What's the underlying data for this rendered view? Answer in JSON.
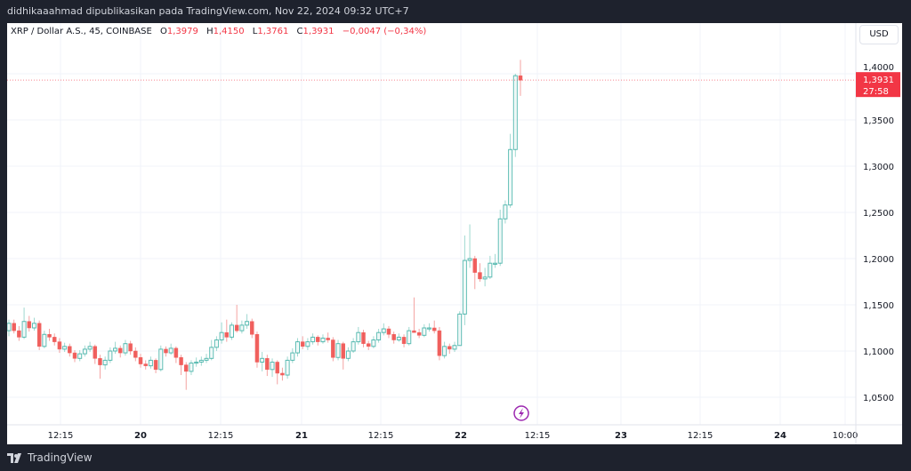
{
  "header": {
    "publish_text": "didhikaaahmad dipublikasikan pada TradingView.com, Nov 22, 2024 09:32 UTC+7"
  },
  "legend": {
    "symbol": "XRP / Dollar A.S., 45, COINBASE",
    "o_label": "O",
    "o": "1,3979",
    "h_label": "H",
    "h": "1,4150",
    "l_label": "L",
    "l": "1,3761",
    "c_label": "C",
    "c": "1,3931",
    "change": "−0,0047 (−0,34%)"
  },
  "currency_button": "USD",
  "last_price": {
    "price": "1,3931",
    "countdown": "27:58",
    "value": 1.3931
  },
  "footer": {
    "brand": "TradingView"
  },
  "colors": {
    "up": "#26a69a",
    "down": "#ef5350",
    "price_label": "#f23645",
    "lightning": "#9c27b0"
  },
  "icons": {
    "lightning": "lightning-icon",
    "logo": "tradingview-logo-icon"
  },
  "chart_data": {
    "type": "candlestick",
    "ylim": [
      1.03,
      1.43
    ],
    "y_ticks": [
      1.05,
      1.1,
      1.15,
      1.2,
      1.25,
      1.3,
      1.35,
      1.4
    ],
    "y_tick_labels": [
      "1,0500",
      "1,1000",
      "1,1500",
      "1,2000",
      "1,2500",
      "1,3000",
      "1,3500",
      "1,4000"
    ],
    "x_tick_labels": [
      "12:15",
      "20",
      "12:15",
      "21",
      "12:15",
      "22",
      "12:15",
      "23",
      "12:15",
      "24",
      "10:00"
    ],
    "grid": true,
    "candles": [
      [
        1.122,
        1.134,
        1.116,
        1.13
      ],
      [
        1.13,
        1.134,
        1.119,
        1.122
      ],
      [
        1.122,
        1.127,
        1.111,
        1.115
      ],
      [
        1.115,
        1.147,
        1.113,
        1.132
      ],
      [
        1.132,
        1.138,
        1.121,
        1.125
      ],
      [
        1.125,
        1.136,
        1.122,
        1.13
      ],
      [
        1.13,
        1.133,
        1.101,
        1.105
      ],
      [
        1.105,
        1.122,
        1.103,
        1.118
      ],
      [
        1.118,
        1.124,
        1.111,
        1.115
      ],
      [
        1.115,
        1.119,
        1.106,
        1.11
      ],
      [
        1.11,
        1.114,
        1.098,
        1.102
      ],
      [
        1.102,
        1.109,
        1.099,
        1.105
      ],
      [
        1.105,
        1.108,
        1.094,
        1.098
      ],
      [
        1.098,
        1.101,
        1.088,
        1.092
      ],
      [
        1.092,
        1.101,
        1.089,
        1.097
      ],
      [
        1.097,
        1.106,
        1.094,
        1.102
      ],
      [
        1.102,
        1.11,
        1.099,
        1.105
      ],
      [
        1.105,
        1.107,
        1.086,
        1.092
      ],
      [
        1.092,
        1.096,
        1.07,
        1.085
      ],
      [
        1.085,
        1.094,
        1.08,
        1.09
      ],
      [
        1.09,
        1.104,
        1.087,
        1.1
      ],
      [
        1.1,
        1.11,
        1.097,
        1.103
      ],
      [
        1.103,
        1.106,
        1.093,
        1.098
      ],
      [
        1.098,
        1.112,
        1.095,
        1.108
      ],
      [
        1.108,
        1.111,
        1.096,
        1.1
      ],
      [
        1.1,
        1.104,
        1.089,
        1.093
      ],
      [
        1.093,
        1.097,
        1.082,
        1.086
      ],
      [
        1.086,
        1.09,
        1.08,
        1.084
      ],
      [
        1.084,
        1.094,
        1.081,
        1.09
      ],
      [
        1.09,
        1.092,
        1.076,
        1.08
      ],
      [
        1.08,
        1.106,
        1.078,
        1.102
      ],
      [
        1.102,
        1.105,
        1.094,
        1.098
      ],
      [
        1.098,
        1.108,
        1.096,
        1.103
      ],
      [
        1.103,
        1.105,
        1.087,
        1.093
      ],
      [
        1.093,
        1.096,
        1.074,
        1.085
      ],
      [
        1.085,
        1.088,
        1.058,
        1.078
      ],
      [
        1.078,
        1.09,
        1.074,
        1.087
      ],
      [
        1.087,
        1.093,
        1.083,
        1.088
      ],
      [
        1.088,
        1.094,
        1.084,
        1.09
      ],
      [
        1.09,
        1.097,
        1.087,
        1.092
      ],
      [
        1.092,
        1.112,
        1.09,
        1.104
      ],
      [
        1.104,
        1.116,
        1.1,
        1.112
      ],
      [
        1.112,
        1.131,
        1.108,
        1.12
      ],
      [
        1.12,
        1.134,
        1.11,
        1.115
      ],
      [
        1.115,
        1.131,
        1.112,
        1.128
      ],
      [
        1.128,
        1.15,
        1.12,
        1.122
      ],
      [
        1.122,
        1.133,
        1.119,
        1.128
      ],
      [
        1.128,
        1.14,
        1.124,
        1.132
      ],
      [
        1.132,
        1.135,
        1.114,
        1.118
      ],
      [
        1.118,
        1.121,
        1.082,
        1.088
      ],
      [
        1.088,
        1.099,
        1.078,
        1.092
      ],
      [
        1.092,
        1.096,
        1.073,
        1.08
      ],
      [
        1.08,
        1.092,
        1.072,
        1.088
      ],
      [
        1.088,
        1.09,
        1.064,
        1.076
      ],
      [
        1.076,
        1.082,
        1.068,
        1.074
      ],
      [
        1.074,
        1.094,
        1.07,
        1.09
      ],
      [
        1.09,
        1.103,
        1.087,
        1.098
      ],
      [
        1.098,
        1.114,
        1.094,
        1.11
      ],
      [
        1.11,
        1.116,
        1.102,
        1.105
      ],
      [
        1.105,
        1.114,
        1.101,
        1.11
      ],
      [
        1.11,
        1.119,
        1.107,
        1.115
      ],
      [
        1.115,
        1.117,
        1.106,
        1.11
      ],
      [
        1.11,
        1.118,
        1.108,
        1.114
      ],
      [
        1.114,
        1.12,
        1.109,
        1.112
      ],
      [
        1.112,
        1.115,
        1.089,
        1.093
      ],
      [
        1.093,
        1.112,
        1.09,
        1.108
      ],
      [
        1.108,
        1.11,
        1.08,
        1.092
      ],
      [
        1.092,
        1.104,
        1.089,
        1.1
      ],
      [
        1.1,
        1.114,
        1.098,
        1.11
      ],
      [
        1.11,
        1.126,
        1.107,
        1.12
      ],
      [
        1.12,
        1.123,
        1.104,
        1.108
      ],
      [
        1.108,
        1.111,
        1.101,
        1.105
      ],
      [
        1.105,
        1.116,
        1.103,
        1.112
      ],
      [
        1.112,
        1.124,
        1.109,
        1.12
      ],
      [
        1.12,
        1.13,
        1.117,
        1.124
      ],
      [
        1.124,
        1.127,
        1.114,
        1.118
      ],
      [
        1.118,
        1.121,
        1.108,
        1.112
      ],
      [
        1.112,
        1.119,
        1.11,
        1.115
      ],
      [
        1.115,
        1.118,
        1.104,
        1.108
      ],
      [
        1.108,
        1.126,
        1.106,
        1.122
      ],
      [
        1.122,
        1.158,
        1.12,
        1.12
      ],
      [
        1.12,
        1.124,
        1.114,
        1.117
      ],
      [
        1.117,
        1.129,
        1.115,
        1.125
      ],
      [
        1.125,
        1.13,
        1.121,
        1.125
      ],
      [
        1.125,
        1.133,
        1.119,
        1.122
      ],
      [
        1.122,
        1.126,
        1.09,
        1.095
      ],
      [
        1.095,
        1.11,
        1.092,
        1.105
      ],
      [
        1.105,
        1.108,
        1.097,
        1.102
      ],
      [
        1.102,
        1.11,
        1.099,
        1.106
      ],
      [
        1.106,
        1.143,
        1.106,
        1.14
      ],
      [
        1.14,
        1.225,
        1.128,
        1.198
      ],
      [
        1.198,
        1.237,
        1.19,
        1.2
      ],
      [
        1.2,
        1.203,
        1.167,
        1.185
      ],
      [
        1.185,
        1.195,
        1.175,
        1.178
      ],
      [
        1.178,
        1.19,
        1.17,
        1.18
      ],
      [
        1.18,
        1.203,
        1.178,
        1.195
      ],
      [
        1.195,
        1.205,
        1.19,
        1.195
      ],
      [
        1.195,
        1.253,
        1.192,
        1.243
      ],
      [
        1.243,
        1.263,
        1.238,
        1.258
      ],
      [
        1.258,
        1.335,
        1.255,
        1.318
      ],
      [
        1.318,
        1.4,
        1.31,
        1.3979
      ],
      [
        1.3979,
        1.415,
        1.3761,
        1.3931
      ]
    ]
  }
}
